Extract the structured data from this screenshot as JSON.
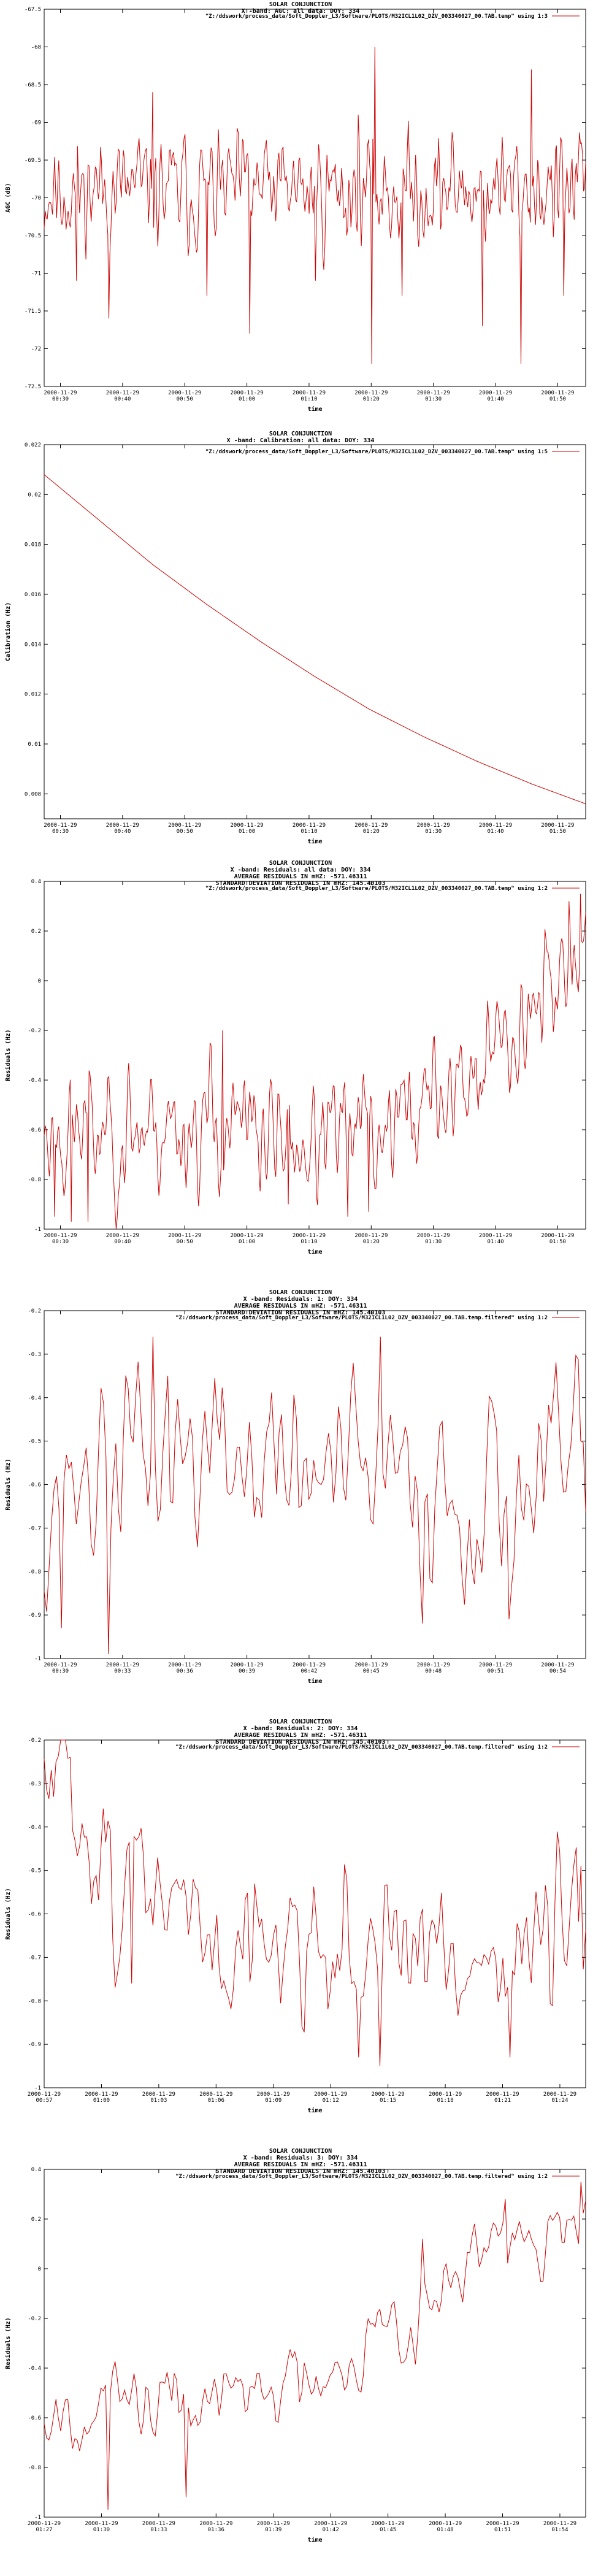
{
  "style": {
    "series_color": "#cc0000",
    "axis_color": "#000000",
    "background": "#ffffff"
  },
  "common": {
    "legend_file": "\"Z:/ddswork/process_data/Soft_Doppler_L3/Software/PLOTS/M32ICL1L02_DZV_003340027_00.TAB.temp\"",
    "legend_file_filtered": "\"Z:/ddswork/process_data/Soft_Doppler_L3/Software/PLOTS/M32ICL1L02_DZV_003340027_00.TAB.temp.filtered\""
  },
  "chart_data": [
    {
      "type": "line",
      "title": [
        "SOLAR CONJUNCTION",
        "X -band: AGC: all data: DOY: 334"
      ],
      "legend": "\"Z:/ddswork/process_data/Soft_Doppler_L3/Software/PLOTS/M32ICL1L02_DZV_003340027_00.TAB.temp\" using 1:3",
      "legend_placement": "top-right",
      "xlabel": "time",
      "ylabel": "AGC (dB)",
      "ylim": [
        -72.5,
        -67.5
      ],
      "yticks": [
        "-67.5",
        "-68",
        "-68.5",
        "-69",
        "-69.5",
        "-70",
        "-70.5",
        "-71",
        "-71.5",
        "-72",
        "-72.5"
      ],
      "xticks": [
        [
          "2000-11-29",
          "00:30"
        ],
        [
          "2000-11-29",
          "00:40"
        ],
        [
          "2000-11-29",
          "00:50"
        ],
        [
          "2000-11-29",
          "01:00"
        ],
        [
          "2000-11-29",
          "01:10"
        ],
        [
          "2000-11-29",
          "01:20"
        ],
        [
          "2000-11-29",
          "01:30"
        ],
        [
          "2000-11-29",
          "01:40"
        ],
        [
          "2000-11-29",
          "01:50"
        ]
      ],
      "series": [
        {
          "kind": "noise",
          "points": 520,
          "seed": 11,
          "base": [
            [
              0,
              -69.9
            ],
            [
              1,
              -69.9
            ]
          ],
          "amp": 0.45,
          "smooth": 1,
          "spikes": [
            [
              0.06,
              -71.1
            ],
            [
              0.12,
              -71.6
            ],
            [
              0.2,
              -68.6
            ],
            [
              0.3,
              -71.3
            ],
            [
              0.38,
              -71.8
            ],
            [
              0.5,
              -71.1
            ],
            [
              0.58,
              -68.9
            ],
            [
              0.605,
              -72.2
            ],
            [
              0.61,
              -68.0
            ],
            [
              0.66,
              -71.3
            ],
            [
              0.81,
              -71.7
            ],
            [
              0.88,
              -72.2
            ],
            [
              0.9,
              -68.3
            ],
            [
              0.96,
              -71.3
            ]
          ],
          "clamp": [
            -72.5,
            -67.5
          ]
        }
      ]
    },
    {
      "type": "line",
      "title": [
        "SOLAR CONJUNCTION",
        "X -band: Calibration: all data: DOY: 334"
      ],
      "legend": "\"Z:/ddswork/process_data/Soft_Doppler_L3/Software/PLOTS/M32ICL1L02_DZV_003340027_00.TAB.temp\" using 1:5",
      "legend_placement": "top-right",
      "xlabel": "time",
      "ylabel": "Calibration (Hz)",
      "ylim": [
        0.007,
        0.022
      ],
      "yticks": [
        "0.022",
        "0.02",
        "0.018",
        "0.016",
        "0.014",
        "0.012",
        "0.01",
        "0.008"
      ],
      "xticks": [
        [
          "2000-11-29",
          "00:30"
        ],
        [
          "2000-11-29",
          "00:40"
        ],
        [
          "2000-11-29",
          "00:50"
        ],
        [
          "2000-11-29",
          "01:00"
        ],
        [
          "2000-11-29",
          "01:10"
        ],
        [
          "2000-11-29",
          "01:20"
        ],
        [
          "2000-11-29",
          "01:30"
        ],
        [
          "2000-11-29",
          "01:40"
        ],
        [
          "2000-11-29",
          "01:50"
        ]
      ],
      "series": [
        {
          "kind": "curve",
          "x": [
            0,
            0.1,
            0.2,
            0.3,
            0.4,
            0.5,
            0.6,
            0.7,
            0.8,
            0.9,
            1.0
          ],
          "y": [
            0.0208,
            0.019,
            0.0172,
            0.0156,
            0.0141,
            0.0127,
            0.0114,
            0.0103,
            0.0093,
            0.0084,
            0.0076
          ]
        }
      ]
    },
    {
      "type": "line",
      "title": [
        "SOLAR CONJUNCTION",
        "X -band: Residuals: all data: DOY: 334",
        "AVERAGE RESIDUALS IN mHZ: -571.46311",
        "STANDARD DEVIATION RESIDUALS IN mHZ: 145.40103"
      ],
      "legend": "\"Z:/ddswork/process_data/Soft_Doppler_L3/Software/PLOTS/M32ICL1L02_DZV_003340027_00.TAB.temp\" using 1:2",
      "legend_placement": "top-right",
      "xlabel": "time",
      "ylabel": "Residuals (Hz)",
      "ylim": [
        -1,
        0.4
      ],
      "yticks": [
        "0.4",
        "0.2",
        "0",
        "-0.2",
        "-0.4",
        "-0.6",
        "-0.8",
        "-1"
      ],
      "xticks": [
        [
          "2000-11-29",
          "00:30"
        ],
        [
          "2000-11-29",
          "00:40"
        ],
        [
          "2000-11-29",
          "00:50"
        ],
        [
          "2000-11-29",
          "01:00"
        ],
        [
          "2000-11-29",
          "01:10"
        ],
        [
          "2000-11-29",
          "01:20"
        ],
        [
          "2000-11-29",
          "01:30"
        ],
        [
          "2000-11-29",
          "01:40"
        ],
        [
          "2000-11-29",
          "01:50"
        ]
      ],
      "series": [
        {
          "kind": "noise",
          "points": 520,
          "seed": 23,
          "base": [
            [
              0,
              -0.6
            ],
            [
              0.1,
              -0.6
            ],
            [
              0.3,
              -0.58
            ],
            [
              0.5,
              -0.66
            ],
            [
              0.6,
              -0.62
            ],
            [
              0.7,
              -0.5
            ],
            [
              0.8,
              -0.38
            ],
            [
              0.9,
              -0.08
            ],
            [
              1,
              0.15
            ]
          ],
          "amp": 0.12,
          "smooth": 2,
          "spikes": [
            [
              0.02,
              -0.95
            ],
            [
              0.05,
              -0.97
            ],
            [
              0.08,
              -0.97
            ],
            [
              0.33,
              -0.2
            ],
            [
              0.45,
              -0.9
            ],
            [
              0.56,
              -0.95
            ],
            [
              0.6,
              -0.93
            ],
            [
              0.97,
              0.32
            ],
            [
              0.99,
              0.35
            ]
          ],
          "clamp": [
            -1,
            0.4
          ]
        }
      ]
    },
    {
      "type": "line",
      "title": [
        "SOLAR CONJUNCTION",
        "X -band: Residuals: 1: DOY: 334",
        "AVERAGE RESIDUALS IN mHZ: -571.46311",
        "STANDARD DEVIATION RESIDUALS IN mHZ: 145.40103"
      ],
      "legend": "\"Z:/ddswork/process_data/Soft_Doppler_L3/Software/PLOTS/M32ICL1L02_DZV_003340027_00.TAB.temp.filtered\" using 1:2",
      "legend_placement": "top-right",
      "xlabel": "time",
      "ylabel": "Residuals (Hz)",
      "ylim": [
        -1,
        -0.2
      ],
      "yticks": [
        "-0.2",
        "-0.3",
        "-0.4",
        "-0.5",
        "-0.6",
        "-0.7",
        "-0.8",
        "-0.9",
        "-1"
      ],
      "xticks": [
        [
          "2000-11-29",
          "00:30"
        ],
        [
          "2000-11-29",
          "00:33"
        ],
        [
          "2000-11-29",
          "00:36"
        ],
        [
          "2000-11-29",
          "00:39"
        ],
        [
          "2000-11-29",
          "00:42"
        ],
        [
          "2000-11-29",
          "00:45"
        ],
        [
          "2000-11-29",
          "00:48"
        ],
        [
          "2000-11-29",
          "00:51"
        ],
        [
          "2000-11-29",
          "00:54"
        ]
      ],
      "series": [
        {
          "kind": "noise",
          "points": 220,
          "seed": 37,
          "base": [
            [
              0,
              -0.62
            ],
            [
              0.2,
              -0.52
            ],
            [
              0.4,
              -0.55
            ],
            [
              0.6,
              -0.6
            ],
            [
              0.8,
              -0.62
            ],
            [
              1,
              -0.58
            ]
          ],
          "amp": 0.14,
          "smooth": 1,
          "spikes": [
            [
              0.03,
              -0.93
            ],
            [
              0.12,
              -0.99
            ],
            [
              0.2,
              -0.26
            ],
            [
              0.23,
              -0.35
            ],
            [
              0.57,
              -0.32
            ],
            [
              0.62,
              -0.26
            ],
            [
              0.7,
              -0.92
            ],
            [
              0.86,
              -0.91
            ],
            [
              0.99,
              -0.5
            ]
          ],
          "clamp": [
            -1,
            -0.2
          ]
        }
      ]
    },
    {
      "type": "line",
      "title": [
        "SOLAR CONJUNCTION",
        "X -band: Residuals: 2: DOY: 334",
        "AVERAGE RESIDUALS IN mHZ: -571.46311",
        "STANDARD DEVIATION RESIDUALS IN mHZ: 145.40103"
      ],
      "legend": "\"Z:/ddswork/process_data/Soft_Doppler_L3/Software/PLOTS/M32ICL1L02_DZV_003340027_00.TAB.temp.filtered\" using 1:2",
      "legend_placement": "top-right",
      "xlabel": "time",
      "ylabel": "Residuals (Hz)",
      "ylim": [
        -1,
        -0.2
      ],
      "yticks": [
        "-0.2",
        "-0.3",
        "-0.4",
        "-0.5",
        "-0.6",
        "-0.7",
        "-0.8",
        "-0.9",
        "-1"
      ],
      "xticks": [
        [
          "2000-11-29",
          "00:57"
        ],
        [
          "2000-11-29",
          "01:00"
        ],
        [
          "2000-11-29",
          "01:03"
        ],
        [
          "2000-11-29",
          "01:06"
        ],
        [
          "2000-11-29",
          "01:09"
        ],
        [
          "2000-11-29",
          "01:12"
        ],
        [
          "2000-11-29",
          "01:15"
        ],
        [
          "2000-11-29",
          "01:18"
        ],
        [
          "2000-11-29",
          "01:21"
        ],
        [
          "2000-11-29",
          "01:24"
        ]
      ],
      "series": [
        {
          "kind": "noise",
          "points": 230,
          "seed": 51,
          "base": [
            [
              0,
              -0.35
            ],
            [
              0.05,
              -0.3
            ],
            [
              0.12,
              -0.5
            ],
            [
              0.3,
              -0.64
            ],
            [
              0.6,
              -0.68
            ],
            [
              0.8,
              -0.7
            ],
            [
              1,
              -0.66
            ]
          ],
          "amp": 0.12,
          "smooth": 1,
          "spikes": [
            [
              0.02,
              -0.25
            ],
            [
              0.05,
              -0.24
            ],
            [
              0.16,
              -0.76
            ],
            [
              0.58,
              -0.93
            ],
            [
              0.62,
              -0.95
            ],
            [
              0.86,
              -0.93
            ],
            [
              0.99,
              -0.49
            ]
          ],
          "clamp": [
            -1,
            -0.2
          ]
        }
      ]
    },
    {
      "type": "line",
      "title": [
        "SOLAR CONJUNCTION",
        "X -band: Residuals: 3: DOY: 334",
        "AVERAGE RESIDUALS IN mHZ: -571.46311",
        "STANDARD DEVIATION RESIDUALS IN mHZ: 145.40103"
      ],
      "legend": "\"Z:/ddswork/process_data/Soft_Doppler_L3/Software/PLOTS/M32ICL1L02_DZV_003340027_00.TAB.temp.filtered\" using 1:2",
      "legend_placement": "top-right",
      "xlabel": "time",
      "ylabel": "Residuals (Hz)",
      "ylim": [
        -1,
        0.4
      ],
      "yticks": [
        "0.4",
        "0.2",
        "0",
        "-0.2",
        "-0.4",
        "-0.6",
        "-0.8",
        "-1"
      ],
      "xticks": [
        [
          "2000-11-29",
          "01:27"
        ],
        [
          "2000-11-29",
          "01:30"
        ],
        [
          "2000-11-29",
          "01:33"
        ],
        [
          "2000-11-29",
          "01:36"
        ],
        [
          "2000-11-29",
          "01:39"
        ],
        [
          "2000-11-29",
          "01:42"
        ],
        [
          "2000-11-29",
          "01:45"
        ],
        [
          "2000-11-29",
          "01:48"
        ],
        [
          "2000-11-29",
          "01:51"
        ],
        [
          "2000-11-29",
          "01:54"
        ]
      ],
      "series": [
        {
          "kind": "noise",
          "points": 230,
          "seed": 67,
          "base": [
            [
              0,
              -0.55
            ],
            [
              0.2,
              -0.55
            ],
            [
              0.4,
              -0.5
            ],
            [
              0.55,
              -0.35
            ],
            [
              0.7,
              -0.15
            ],
            [
              0.8,
              0.05
            ],
            [
              0.9,
              0.12
            ],
            [
              1,
              0.2
            ]
          ],
          "amp": 0.1,
          "smooth": 1,
          "spikes": [
            [
              0.12,
              -0.97
            ],
            [
              0.26,
              -0.92
            ],
            [
              0.7,
              0.12
            ],
            [
              0.85,
              0.28
            ],
            [
              0.99,
              0.35
            ]
          ],
          "clamp": [
            -1,
            0.4
          ]
        }
      ]
    }
  ]
}
